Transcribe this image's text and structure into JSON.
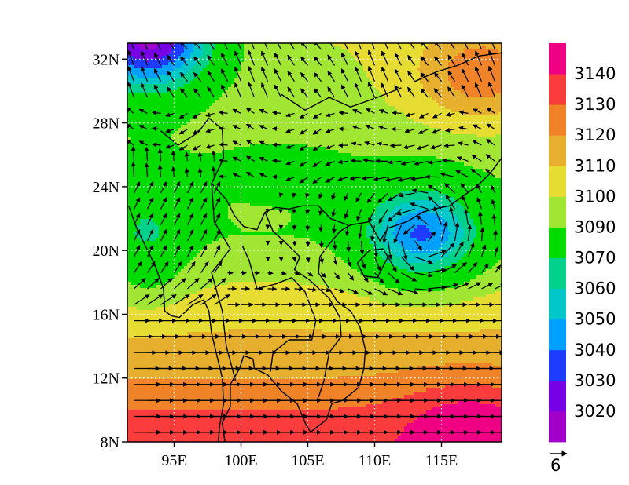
{
  "chart_data": {
    "type": "heatmap",
    "subtype": "filled contour map with wind vectors",
    "x_axis": {
      "ticks": [
        95,
        100,
        105,
        110,
        115
      ],
      "tick_labels": [
        "95E",
        "100E",
        "105E",
        "110E",
        "115E"
      ],
      "range": [
        91.5,
        119.5
      ]
    },
    "y_axis": {
      "ticks": [
        8,
        12,
        16,
        20,
        24,
        28,
        32
      ],
      "tick_labels": [
        "8N",
        "12N",
        "16N",
        "20N",
        "24N",
        "28N",
        "32N"
      ],
      "range": [
        8,
        33
      ]
    },
    "gridlines": "dotted",
    "colorbar": {
      "levels": [
        3020,
        3030,
        3040,
        3050,
        3060,
        3070,
        3090,
        3100,
        3110,
        3120,
        3130,
        3140
      ],
      "labels": [
        "3020",
        "3030",
        "3040",
        "3050",
        "3060",
        "3070",
        "3090",
        "3100",
        "3110",
        "3120",
        "3130",
        "3140"
      ],
      "colors": [
        "#a000c8",
        "#7800e6",
        "#1e3cff",
        "#00a0ff",
        "#00c8c8",
        "#00d28c",
        "#00dc00",
        "#a0e632",
        "#e6dc32",
        "#e6af2d",
        "#f08228",
        "#fa3c3c",
        "#f00082"
      ]
    },
    "reference_vector": {
      "label": "6"
    },
    "features": {
      "low_center": {
        "lon": 113.5,
        "lat": 21.0,
        "min_value": 3040
      },
      "background_field": [
        {
          "lat": 33,
          "value": 3100
        },
        {
          "lat": 29,
          "value": 3097
        },
        {
          "lat": 25,
          "value": 3092
        },
        {
          "lat": 21,
          "value": 3090
        },
        {
          "lat": 18,
          "value": 3100
        },
        {
          "lat": 15,
          "value": 3110
        },
        {
          "lat": 12,
          "value": 3120
        },
        {
          "lat": 10,
          "value": 3130
        },
        {
          "lat": 8,
          "value": 3136
        }
      ]
    }
  }
}
